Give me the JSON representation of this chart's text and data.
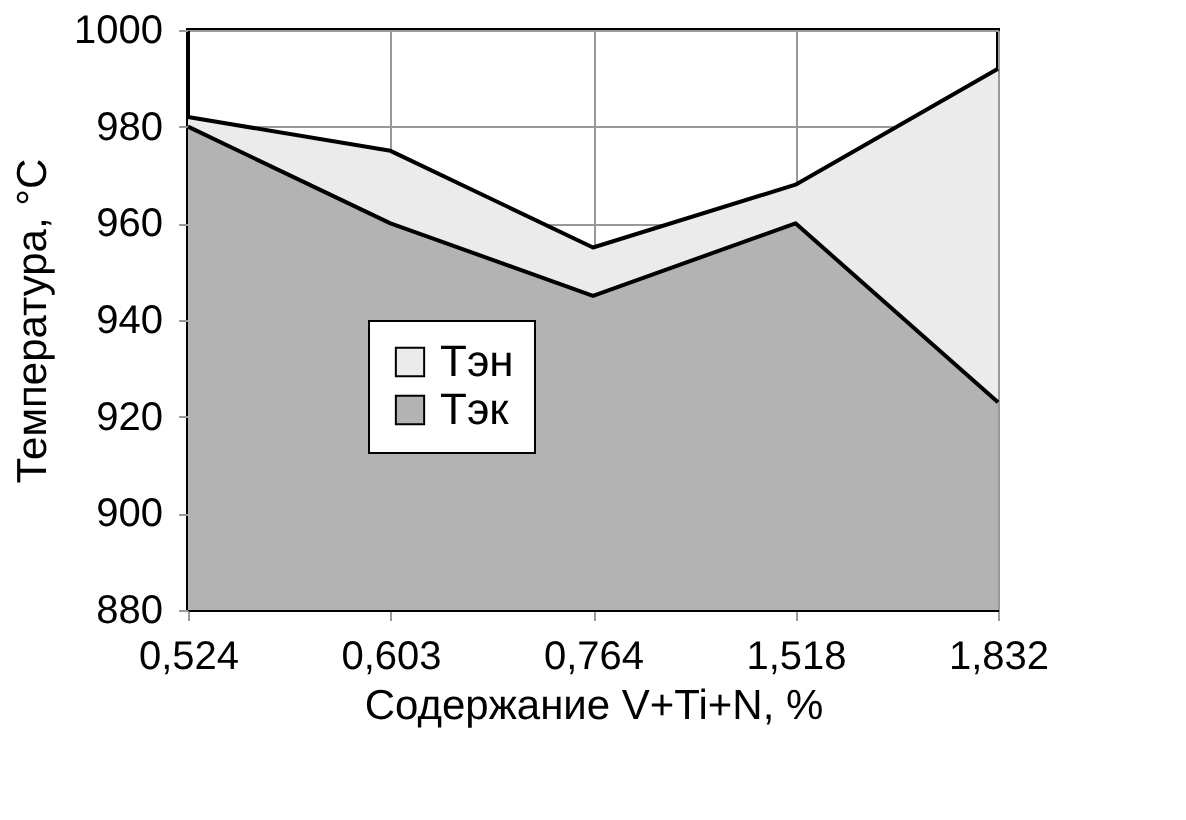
{
  "chart_data": {
    "type": "area",
    "categories": [
      "0,524",
      "0,603",
      "0,764",
      "1,518",
      "1,832"
    ],
    "series": [
      {
        "name": "Тэн",
        "color": "#ebebeb",
        "values": [
          982,
          975,
          955,
          968,
          992
        ]
      },
      {
        "name": "Тэк",
        "color": "#b3b3b3",
        "values": [
          980,
          960,
          945,
          960,
          923
        ]
      }
    ],
    "xlabel": "Содержание V+Ti+N, %",
    "ylabel": "Температура, °С",
    "ylim": [
      880,
      1000
    ],
    "yticks": [
      880,
      900,
      920,
      940,
      960,
      980,
      1000
    ],
    "grid": true,
    "legend": "center"
  }
}
